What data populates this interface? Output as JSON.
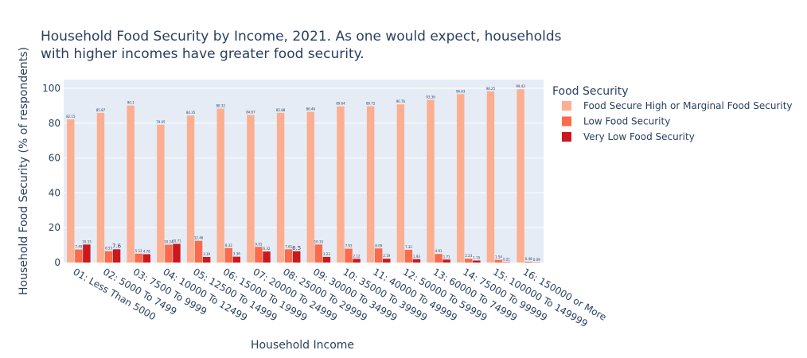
{
  "chart_data": {
    "type": "bar",
    "title_line1": "Household Food Security by Income, 2021. As one would expect, households",
    "title_line2": "with higher incomes have greater food security.",
    "xlabel": "Household Income",
    "ylabel": "Household Food Security (% of respondents)",
    "ylim": [
      0,
      105
    ],
    "yticks": [
      0,
      20,
      40,
      60,
      80,
      100
    ],
    "grid": true,
    "legend_position": "right",
    "legend_title": "Food Security",
    "categories": [
      "01: Less Than 5000",
      "02: 5000 To 7499",
      "03: 7500 To 9999",
      "04: 10000 To 12499",
      "05: 12500 To 14999",
      "06: 15000 To 19999",
      "07: 20000 To 24999",
      "08: 25000 To 29999",
      "09: 30000 To 34999",
      "10: 35000 To 39999",
      "11: 40000 To 49999",
      "12: 50000 To 59999",
      "13: 60000 To 74999",
      "14: 75000 To 99999",
      "15: 100000 To 149999",
      "16: 150000 or More"
    ],
    "series": [
      {
        "name": "Food Secure High or Marginal Food Security",
        "color": "#fcae91",
        "values": [
          82.15,
          85.87,
          90.1,
          79.05,
          84.35,
          88.32,
          84.67,
          85.88,
          86.46,
          89.64,
          89.72,
          90.76,
          93.36,
          96.63,
          98.25,
          99.43
        ],
        "labels": [
          "82.15",
          "85.87",
          "90.1",
          "79.05",
          "84.35",
          "88.32",
          "84.67",
          "85.88",
          "86.46",
          "89.64",
          "89.72",
          "90.76",
          "93.36",
          "96.63",
          "98.25",
          "99.43"
        ]
      },
      {
        "name": "Low Food Security",
        "color": "#fb6a4a",
        "values": [
          7.49,
          6.53,
          5.12,
          10.24,
          12.46,
          8.32,
          9.01,
          7.61,
          10.33,
          7.93,
          8.09,
          7.32,
          4.91,
          2.23,
          1.54,
          0.48
        ],
        "labels": [
          "7.49",
          "6.53",
          "5.12",
          "10.24",
          "12.46",
          "8.32",
          "9.01",
          "7.61",
          "10.33",
          "7.93",
          "8.09",
          "7.32",
          "4.91",
          "2.23",
          "1.54",
          "0.48"
        ]
      },
      {
        "name": "Very Low Food Security",
        "color": "#cb181d",
        "values": [
          10.33,
          7.6,
          4.78,
          10.71,
          3.19,
          3.36,
          6.32,
          6.5,
          3.23,
          2.12,
          2.19,
          1.93,
          1.71,
          1.15,
          0.21,
          0.09
        ],
        "labels": [
          "10.33",
          "7.6",
          "4.78",
          "10.71",
          "3.19",
          "3.36",
          "6.32",
          "6.5",
          "3.23",
          "2.12",
          "2.19",
          "1.93",
          "1.71",
          "1.15",
          "0.21",
          "0.09"
        ]
      }
    ]
  }
}
